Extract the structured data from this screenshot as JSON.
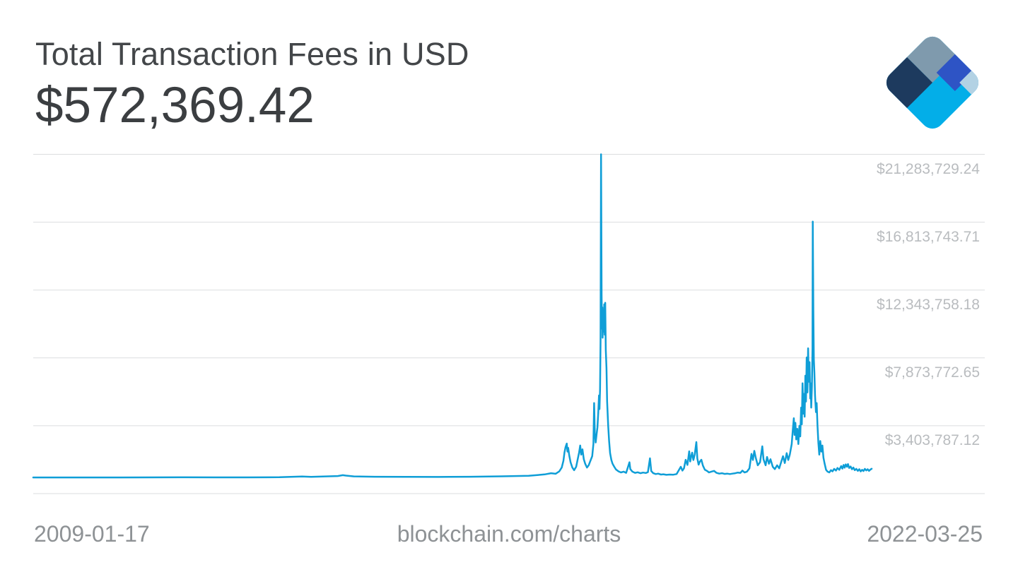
{
  "header": {
    "title": "Total Transaction Fees in USD",
    "value": "$572,369.42"
  },
  "footer": {
    "start_date": "2009-01-17",
    "watermark": "blockchain.com/charts",
    "end_date": "2022-03-25"
  },
  "colors": {
    "line": "#0f9ed7",
    "grid": "#dbdddf",
    "title": "#434649",
    "value": "#3b3e41",
    "ylabel": "#b9bcbf",
    "xlabel": "#8e9295",
    "logo": {
      "cyan": "#03aee8",
      "gray": "#7f9aad",
      "navy": "#1d3a5e",
      "royal": "#2e54c5",
      "light": "#b3d2e4"
    }
  },
  "chart_data": {
    "type": "line",
    "title": "Total Transaction Fees in USD",
    "current_value": 572369.42,
    "x_range": [
      "2009-01-17",
      "2022-03-25"
    ],
    "y_min": -1066198.41,
    "y_max": 21283729.24,
    "grid": "horizontal",
    "legend": "none",
    "y_gridlines": [
      {
        "value": 21283729.24,
        "label": "$21,283,729.24"
      },
      {
        "value": 16813743.71,
        "label": "$16,813,743.71"
      },
      {
        "value": 12343758.18,
        "label": "$12,343,758.18"
      },
      {
        "value": 7873772.65,
        "label": "$7,873,772.65"
      },
      {
        "value": 3403787.12,
        "label": "$3,403,787.12"
      },
      {
        "value": -1066198.41,
        "label": ""
      }
    ],
    "series": [
      {
        "name": "Total Transaction Fees (USD)",
        "points": [
          [
            "2009-01-17",
            0
          ],
          [
            "2009-06-01",
            30
          ],
          [
            "2010-01-01",
            150
          ],
          [
            "2010-06-01",
            500
          ],
          [
            "2010-12-01",
            1500
          ],
          [
            "2011-06-10",
            8000
          ],
          [
            "2011-12-01",
            3000
          ],
          [
            "2012-06-01",
            5000
          ],
          [
            "2012-12-01",
            12000
          ],
          [
            "2013-04-10",
            60000
          ],
          [
            "2013-06-01",
            35000
          ],
          [
            "2013-11-01",
            90000
          ],
          [
            "2013-11-30",
            150000
          ],
          [
            "2013-12-18",
            120000
          ],
          [
            "2014-02-01",
            70000
          ],
          [
            "2014-06-01",
            45000
          ],
          [
            "2014-12-01",
            35000
          ],
          [
            "2015-06-01",
            32000
          ],
          [
            "2015-12-01",
            45000
          ],
          [
            "2016-06-01",
            75000
          ],
          [
            "2016-11-01",
            110000
          ],
          [
            "2017-01-05",
            170000
          ],
          [
            "2017-02-01",
            200000
          ],
          [
            "2017-03-10",
            280000
          ],
          [
            "2017-04-05",
            240000
          ],
          [
            "2017-04-26",
            400000
          ],
          [
            "2017-05-10",
            650000
          ],
          [
            "2017-05-20",
            1100000
          ],
          [
            "2017-05-26",
            1650000
          ],
          [
            "2017-06-01",
            2000000
          ],
          [
            "2017-06-08",
            2230000
          ],
          [
            "2017-06-12",
            1700000
          ],
          [
            "2017-06-16",
            1950000
          ],
          [
            "2017-06-22",
            1450000
          ],
          [
            "2017-06-30",
            1000000
          ],
          [
            "2017-07-10",
            650000
          ],
          [
            "2017-07-20",
            480000
          ],
          [
            "2017-08-01",
            700000
          ],
          [
            "2017-08-10",
            1200000
          ],
          [
            "2017-08-18",
            1650000
          ],
          [
            "2017-08-24",
            2100000
          ],
          [
            "2017-08-30",
            1500000
          ],
          [
            "2017-09-06",
            1850000
          ],
          [
            "2017-09-14",
            1200000
          ],
          [
            "2017-09-22",
            900000
          ],
          [
            "2017-10-02",
            650000
          ],
          [
            "2017-10-12",
            800000
          ],
          [
            "2017-10-22",
            1100000
          ],
          [
            "2017-11-01",
            1400000
          ],
          [
            "2017-11-08",
            2200000
          ],
          [
            "2017-11-12",
            4900000
          ],
          [
            "2017-11-16",
            2900000
          ],
          [
            "2017-11-21",
            2300000
          ],
          [
            "2017-11-26",
            2800000
          ],
          [
            "2017-12-01",
            3300000
          ],
          [
            "2017-12-06",
            4300000
          ],
          [
            "2017-12-10",
            5400000
          ],
          [
            "2017-12-13",
            4500000
          ],
          [
            "2017-12-16",
            5800000
          ],
          [
            "2017-12-19",
            9000000
          ],
          [
            "2017-12-22",
            21283729.24
          ],
          [
            "2017-12-25",
            12000000
          ],
          [
            "2017-12-27",
            9800000
          ],
          [
            "2017-12-29",
            11200000
          ],
          [
            "2017-12-31",
            9200000
          ],
          [
            "2018-01-03",
            10800000
          ],
          [
            "2018-01-06",
            9600000
          ],
          [
            "2018-01-09",
            11400000
          ],
          [
            "2018-01-12",
            9400000
          ],
          [
            "2018-01-15",
            11500000
          ],
          [
            "2018-01-18",
            8400000
          ],
          [
            "2018-01-22",
            7200000
          ],
          [
            "2018-01-26",
            5000000
          ],
          [
            "2018-02-01",
            3400000
          ],
          [
            "2018-02-06",
            2400000
          ],
          [
            "2018-02-12",
            1600000
          ],
          [
            "2018-02-19",
            1150000
          ],
          [
            "2018-02-26",
            900000
          ],
          [
            "2018-03-08",
            700000
          ],
          [
            "2018-03-18",
            520000
          ],
          [
            "2018-04-01",
            400000
          ],
          [
            "2018-04-15",
            330000
          ],
          [
            "2018-05-01",
            380000
          ],
          [
            "2018-05-15",
            300000
          ],
          [
            "2018-06-03",
            1000000
          ],
          [
            "2018-06-08",
            550000
          ],
          [
            "2018-06-20",
            380000
          ],
          [
            "2018-07-05",
            300000
          ],
          [
            "2018-07-20",
            340000
          ],
          [
            "2018-08-05",
            280000
          ],
          [
            "2018-08-20",
            320000
          ],
          [
            "2018-09-05",
            290000
          ],
          [
            "2018-09-17",
            350000
          ],
          [
            "2018-09-29",
            1260000
          ],
          [
            "2018-10-06",
            420000
          ],
          [
            "2018-10-18",
            280000
          ],
          [
            "2018-11-01",
            220000
          ],
          [
            "2018-11-15",
            250000
          ],
          [
            "2018-12-01",
            190000
          ],
          [
            "2018-12-15",
            210000
          ],
          [
            "2019-01-01",
            170000
          ],
          [
            "2019-01-20",
            190000
          ],
          [
            "2019-02-10",
            180000
          ],
          [
            "2019-03-01",
            220000
          ],
          [
            "2019-03-25",
            700000
          ],
          [
            "2019-04-03",
            450000
          ],
          [
            "2019-04-12",
            600000
          ],
          [
            "2019-04-22",
            1160000
          ],
          [
            "2019-05-02",
            820000
          ],
          [
            "2019-05-12",
            1720000
          ],
          [
            "2019-05-18",
            1050000
          ],
          [
            "2019-05-24",
            1400000
          ],
          [
            "2019-05-29",
            1630000
          ],
          [
            "2019-06-05",
            1150000
          ],
          [
            "2019-06-13",
            1500000
          ],
          [
            "2019-06-22",
            2330000
          ],
          [
            "2019-06-28",
            1250000
          ],
          [
            "2019-07-05",
            840000
          ],
          [
            "2019-07-13",
            1050000
          ],
          [
            "2019-07-21",
            1160000
          ],
          [
            "2019-07-30",
            780000
          ],
          [
            "2019-08-10",
            510000
          ],
          [
            "2019-08-22",
            430000
          ],
          [
            "2019-09-03",
            330000
          ],
          [
            "2019-09-16",
            380000
          ],
          [
            "2019-10-02",
            430000
          ],
          [
            "2019-10-16",
            300000
          ],
          [
            "2019-11-01",
            250000
          ],
          [
            "2019-11-16",
            280000
          ],
          [
            "2019-12-01",
            230000
          ],
          [
            "2019-12-16",
            250000
          ],
          [
            "2020-01-01",
            220000
          ],
          [
            "2020-01-16",
            250000
          ],
          [
            "2020-02-01",
            280000
          ],
          [
            "2020-02-15",
            320000
          ],
          [
            "2020-03-01",
            300000
          ],
          [
            "2020-03-13",
            450000
          ],
          [
            "2020-03-25",
            330000
          ],
          [
            "2020-04-08",
            380000
          ],
          [
            "2020-04-22",
            600000
          ],
          [
            "2020-05-04",
            1550000
          ],
          [
            "2020-05-12",
            1150000
          ],
          [
            "2020-05-20",
            1750000
          ],
          [
            "2020-05-28",
            1300000
          ],
          [
            "2020-06-09",
            800000
          ],
          [
            "2020-06-22",
            1000000
          ],
          [
            "2020-07-05",
            2050000
          ],
          [
            "2020-07-12",
            1200000
          ],
          [
            "2020-07-24",
            800000
          ],
          [
            "2020-08-01",
            1350000
          ],
          [
            "2020-08-12",
            900000
          ],
          [
            "2020-08-21",
            1200000
          ],
          [
            "2020-09-03",
            700000
          ],
          [
            "2020-09-15",
            550000
          ],
          [
            "2020-09-28",
            800000
          ],
          [
            "2020-10-10",
            600000
          ],
          [
            "2020-10-21",
            1000000
          ],
          [
            "2020-11-01",
            1400000
          ],
          [
            "2020-11-11",
            950000
          ],
          [
            "2020-11-22",
            1600000
          ],
          [
            "2020-12-01",
            1150000
          ],
          [
            "2020-12-10",
            1500000
          ],
          [
            "2020-12-21",
            2200000
          ],
          [
            "2020-12-27",
            3100000
          ],
          [
            "2021-01-02",
            3900000
          ],
          [
            "2021-01-06",
            2800000
          ],
          [
            "2021-01-11",
            3600000
          ],
          [
            "2021-01-16",
            2500000
          ],
          [
            "2021-01-22",
            3200000
          ],
          [
            "2021-01-28",
            2200000
          ],
          [
            "2021-02-03",
            3400000
          ],
          [
            "2021-02-08",
            2700000
          ],
          [
            "2021-02-13",
            4600000
          ],
          [
            "2021-02-17",
            3500000
          ],
          [
            "2021-02-21",
            6200000
          ],
          [
            "2021-02-25",
            4200000
          ],
          [
            "2021-03-01",
            5500000
          ],
          [
            "2021-03-05",
            4000000
          ],
          [
            "2021-03-09",
            6700000
          ],
          [
            "2021-03-13",
            5000000
          ],
          [
            "2021-03-17",
            7900000
          ],
          [
            "2021-03-21",
            5600000
          ],
          [
            "2021-03-25",
            8500000
          ],
          [
            "2021-03-29",
            6300000
          ],
          [
            "2021-04-02",
            7600000
          ],
          [
            "2021-04-06",
            5200000
          ],
          [
            "2021-04-09",
            6200000
          ],
          [
            "2021-04-12",
            4600000
          ],
          [
            "2021-04-16",
            6000000
          ],
          [
            "2021-04-19",
            8500000
          ],
          [
            "2021-04-21",
            16850000
          ],
          [
            "2021-04-24",
            11000000
          ],
          [
            "2021-04-27",
            7800000
          ],
          [
            "2021-04-30",
            6900000
          ],
          [
            "2021-05-04",
            5400000
          ],
          [
            "2021-05-09",
            4300000
          ],
          [
            "2021-05-13",
            4900000
          ],
          [
            "2021-05-18",
            3400000
          ],
          [
            "2021-05-23",
            2300000
          ],
          [
            "2021-05-28",
            1500000
          ],
          [
            "2021-06-03",
            2400000
          ],
          [
            "2021-06-09",
            1700000
          ],
          [
            "2021-06-15",
            2100000
          ],
          [
            "2021-06-21",
            1300000
          ],
          [
            "2021-06-28",
            900000
          ],
          [
            "2021-07-06",
            500000
          ],
          [
            "2021-07-15",
            380000
          ],
          [
            "2021-07-25",
            330000
          ],
          [
            "2021-08-03",
            480000
          ],
          [
            "2021-08-12",
            400000
          ],
          [
            "2021-08-22",
            560000
          ],
          [
            "2021-09-01",
            450000
          ],
          [
            "2021-09-10",
            620000
          ],
          [
            "2021-09-20",
            500000
          ],
          [
            "2021-10-01",
            750000
          ],
          [
            "2021-10-08",
            580000
          ],
          [
            "2021-10-15",
            820000
          ],
          [
            "2021-10-21",
            640000
          ],
          [
            "2021-10-27",
            860000
          ],
          [
            "2021-11-03",
            700000
          ],
          [
            "2021-11-09",
            880000
          ],
          [
            "2021-11-16",
            620000
          ],
          [
            "2021-11-24",
            720000
          ],
          [
            "2021-12-02",
            540000
          ],
          [
            "2021-12-10",
            650000
          ],
          [
            "2021-12-18",
            480000
          ],
          [
            "2021-12-27",
            560000
          ],
          [
            "2022-01-05",
            430000
          ],
          [
            "2022-01-13",
            540000
          ],
          [
            "2022-01-21",
            400000
          ],
          [
            "2022-01-29",
            500000
          ],
          [
            "2022-02-06",
            420000
          ],
          [
            "2022-02-14",
            560000
          ],
          [
            "2022-02-22",
            460000
          ],
          [
            "2022-03-02",
            540000
          ],
          [
            "2022-03-10",
            430000
          ],
          [
            "2022-03-17",
            510000
          ],
          [
            "2022-03-25",
            572369.42
          ]
        ]
      }
    ]
  }
}
